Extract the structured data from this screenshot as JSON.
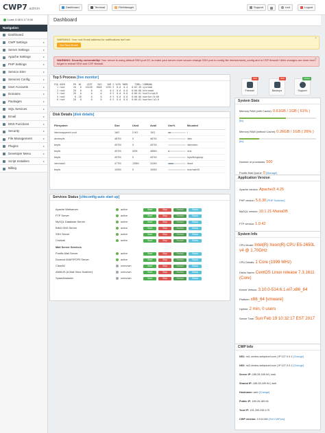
{
  "app": {
    "logo": "CWP7",
    "logo_suffix": ".admin"
  },
  "topbar": {
    "tabs": [
      {
        "label": "Dashboard"
      },
      {
        "label": "Terminal"
      },
      {
        "label": "FileManager"
      }
    ],
    "support": "Support",
    "user": "root",
    "logout": "Logout"
  },
  "load": "Load: 0.08  0.17  0.08",
  "sidebar": {
    "heading": "Navigation",
    "items": [
      {
        "label": "Dashboard",
        "arrow": ""
      },
      {
        "label": "CWP Settings",
        "arrow": "▸"
      },
      {
        "label": "Server Settings",
        "arrow": "▸"
      },
      {
        "label": "Apache Settings",
        "arrow": "▸"
      },
      {
        "label": "PHP Settings",
        "arrow": "▸"
      },
      {
        "label": "Service SSH",
        "arrow": "▸"
      },
      {
        "label": "Services Config",
        "arrow": "▸"
      },
      {
        "label": "User Accounts",
        "arrow": "▸"
      },
      {
        "label": "Domains",
        "arrow": "▸"
      },
      {
        "label": "Packages",
        "arrow": "▸"
      },
      {
        "label": "SQL Services",
        "arrow": "▸"
      },
      {
        "label": "Email",
        "arrow": "▸"
      },
      {
        "label": "DNS Functions",
        "arrow": "▸"
      },
      {
        "label": "Security",
        "arrow": "▸"
      },
      {
        "label": "File Management",
        "arrow": "▸"
      },
      {
        "label": "Plugins",
        "arrow": "▸"
      },
      {
        "label": "Developer Menu",
        "arrow": "▸"
      },
      {
        "label": "Script Installers",
        "arrow": "▸"
      },
      {
        "label": "Billing",
        "arrow": ""
      }
    ]
  },
  "page_title": "Dashboard",
  "alerts": {
    "email": {
      "text": "WARNING: Your root Email address for notifications isn't set.",
      "button": "Set Root Email"
    },
    "security": {
      "lead": "WARNING: Security vulnerability!",
      "text": "Your server is using default SSH port 22, to make your server more secure change SSH port to config file /etc/ssh/sshd_config and in CSF firewall ! After changes are done don't forget to restart SSH and CSF firewall."
    }
  },
  "top_processes": {
    "title": "Top 5 Process",
    "link": "[live monitor]",
    "lines": [
      "PID USER      PR  NI    VIRT    RES    SHR S %CPU %MEM     TIME+ COMMAND",
      "  1 root      20   0   43228   3848   2292 S  0.0  0.4   0:02.39 systemd",
      "  2 root      20   0       0      0      0 S  0.0  0.0   0:00.00 kthreadd",
      "  3 root      20   0       0      0      0 S  0.0  0.0   0:00.01 ksoftirqd/0",
      "  5 root       0 -20       0      0      0 S  0.0  0.0   0:00.00 kworker/0:0H",
      "  6 root      20   0       0      0      0 S  0.0  0.0   0:00.01 kworker/u2:0"
    ]
  },
  "disk": {
    "title": "Disk Details",
    "link": "[disk details]",
    "headers": [
      "Filesystem",
      "Size",
      "Used",
      "Avail",
      "Use%",
      "Mounted"
    ],
    "rows": [
      {
        "fs": "/dev/mapper/cl-root",
        "size": "18G",
        "used": "2.9G",
        "avail": "15G",
        "pct": 17,
        "mount": "/"
      },
      {
        "fs": "devtmpfs",
        "size": "487M",
        "used": "0",
        "avail": "487M",
        "pct": 0,
        "mount": "/dev"
      },
      {
        "fs": "tmpfs",
        "size": "497M",
        "used": "0",
        "avail": "497M",
        "pct": 0,
        "mount": "/dev/shm"
      },
      {
        "fs": "tmpfs",
        "size": "497M",
        "used": "32M",
        "avail": "465M",
        "pct": 7,
        "mount": "/run"
      },
      {
        "fs": "tmpfs",
        "size": "497M",
        "used": "0",
        "avail": "497M",
        "pct": 0,
        "mount": "/sys/fs/cgroup"
      },
      {
        "fs": "/dev/sda1",
        "size": "477M",
        "used": "135M",
        "avail": "313M",
        "pct": 31,
        "mount": "/boot"
      },
      {
        "fs": "tmpfs",
        "size": "100M",
        "used": "0",
        "avail": "100M",
        "pct": 0,
        "mount": "/run/user/0"
      }
    ]
  },
  "services": {
    "title": "Services Status",
    "link": "[chkconfig auto start up]",
    "buttons": {
      "start": "Start",
      "stop": "Stop",
      "restart": "Restart",
      "status": "Status"
    },
    "rows": [
      {
        "name": "Apache Webserver",
        "status": "active"
      },
      {
        "name": "FTP Server",
        "status": "active"
      },
      {
        "name": "MySQL Database Server",
        "status": "active"
      },
      {
        "name": "BIND DNS Server",
        "status": "active"
      },
      {
        "name": "SSH Server",
        "status": "active"
      },
      {
        "name": "Crontab",
        "status": "active"
      }
    ],
    "mail_heading": "Mail Server Services",
    "mail_rows": [
      {
        "name": "Postfix Mail Server",
        "status": "active"
      },
      {
        "name": "Dovecot IMAP/POP3 Server",
        "status": "active"
      },
      {
        "name": "ClamAV",
        "status": "unknown"
      },
      {
        "name": "AMAVIS (A Mail Virus Scanner)",
        "status": "unknown"
      },
      {
        "name": "SpamAssassin",
        "status": "unknown"
      }
    ]
  },
  "quick": [
    {
      "label": "Firewall",
      "badge": "OFF",
      "badge_color": "#e74c3c"
    },
    {
      "label": "Backups",
      "badge": "OFF",
      "badge_color": "#e74c3c"
    },
    {
      "label": "Support",
      "badge": "Online",
      "badge_color": "#4caf50"
    }
  ],
  "system_stats": {
    "title": "System Stats",
    "mem_cache_label": "Memory RAM (with Cache):",
    "mem_cache_value": "0.61GB / 1GB ( 61% )",
    "mem_cache_pct": 61,
    "mem_cache_link": "[fix]",
    "mem_nocache_label": "Memory RAM (without Cache):",
    "mem_nocache_value": "0.26GB / 1GB ( 26% )",
    "mem_nocache_pct": 26,
    "mem_nocache_link": "[fix]",
    "proc_label": "Number of processes:",
    "proc_value": "100",
    "postfix_label": "Postfix Mail Queue:",
    "postfix_value": "0",
    "postfix_link": "[Manage]"
  },
  "app_versions": {
    "title": "Application Version",
    "apache_label": "Apache version:",
    "apache": "Apache/2.4.25",
    "php_label": "PHP version:",
    "php": "5.6.30",
    "php_link": "[PHP Switcher]",
    "mysql_label": "MySQL version:",
    "mysql": "10.1.21-MariaDB",
    "ftp_label": "FTP version:",
    "ftp": "1.0.42"
  },
  "system_info": {
    "title": "System Info",
    "cpu_model_label": "CPU Model:",
    "cpu_model": "Intel(R) Xeon(R) CPU E5-2650L v4 @ 1.70GHz",
    "cpu_details_label": "CPU Details:",
    "cpu_details": "1 Core (1999 MHz)",
    "distro_label": "Distro Name:",
    "distro": "CentOS Linux release 7.3.1611 (Core)",
    "kernel_label": "Kernel Version:",
    "kernel": "3.10.0-514.6.1.el7.x86_64",
    "platform_label": "Platform:",
    "platform": "x86_64 [vmware]",
    "uptime_label": "Uptime:",
    "uptime": "2 min, 0 users",
    "time_label": "Server Time:",
    "time": "Sun Feb 19 10:32:17 EST 2017"
  },
  "cwp_info": {
    "title": "CWP Info",
    "rows": [
      {
        "label": "NS1:",
        "value": "ns1.centos-webpanel.com | IP:127.0.0.1",
        "link": "[Change]"
      },
      {
        "label": "NS2:",
        "value": "ns2.centos-webpanel.com | IP:127.0.0.1",
        "link": "[Change]"
      },
      {
        "label": "Server IP:",
        "value": "185.28.189.94 | web",
        "link": ""
      },
      {
        "label": "Shared IP:",
        "value": "185.28.189.94 | web",
        "link": ""
      },
      {
        "label": "Hostname:",
        "value": "web",
        "link": "[Change]"
      },
      {
        "label": "Public IP:",
        "value": "185.28.189.94",
        "link": ""
      },
      {
        "label": "Your IP:",
        "value": "151.250.248.179",
        "link": ""
      },
      {
        "label": "CWP version:",
        "value": "0.9.8.248",
        "link": "[Get CWPpro]"
      }
    ]
  }
}
